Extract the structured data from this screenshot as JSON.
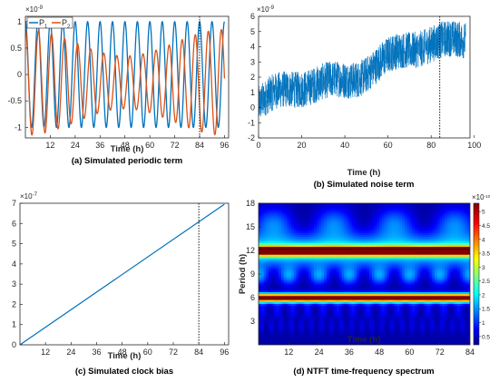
{
  "chart_data": [
    {
      "id": "a",
      "type": "line",
      "caption": "(a) Simulated periodic term",
      "xlabel": "Time (h)",
      "ylabel": "",
      "y_exponent": "×10",
      "y_exponent_power": "-9",
      "xlim": [
        0,
        98
      ],
      "ylim": [
        -1.2,
        1.1
      ],
      "xticks": [
        12,
        24,
        36,
        48,
        60,
        72,
        84,
        96
      ],
      "yticks": [
        -1,
        -0.5,
        0,
        0.5,
        1
      ],
      "legend": {
        "position": "top-left",
        "entries": [
          "P1",
          "P2"
        ],
        "symbol": "P"
      },
      "series": [
        {
          "name": "P1",
          "color": "#0072BD",
          "period_h": 6,
          "amplitude": 1.0,
          "x_range": [
            0,
            96
          ]
        },
        {
          "name": "P2",
          "color": "#D95319",
          "period_h": 6.3,
          "amplitude_range": [
            0.5,
            1.0
          ],
          "mean": -0.15,
          "x_range": [
            0,
            96
          ]
        }
      ],
      "vline_x": 84
    },
    {
      "id": "b",
      "type": "line",
      "caption": "(b) Simulated noise term",
      "xlabel": "Time (h)",
      "y_exponent": "×10",
      "y_exponent_power": "-9",
      "xlim": [
        0,
        98
      ],
      "ylim": [
        -2,
        6
      ],
      "xticks": [
        0,
        20,
        40,
        60,
        80,
        100
      ],
      "yticks": [
        -2,
        -1,
        0,
        1,
        2,
        3,
        4,
        5,
        6
      ],
      "series": [
        {
          "name": "",
          "color": "#0072BD",
          "trend_start": 0.2,
          "trend_end": 4.8,
          "noise_band": 1.2,
          "x_range": [
            0,
            96
          ]
        }
      ],
      "vline_x": 84
    },
    {
      "id": "c",
      "type": "line",
      "caption": "(c) Simulated clock bias",
      "xlabel": "Time (h)",
      "y_exponent": "×10",
      "y_exponent_power": "-7",
      "xlim": [
        0,
        98
      ],
      "ylim": [
        0,
        7
      ],
      "xticks": [
        12,
        24,
        36,
        48,
        60,
        72,
        84,
        96
      ],
      "yticks": [
        0,
        1,
        2,
        3,
        4,
        5,
        6,
        7
      ],
      "series": [
        {
          "name": "",
          "color": "#0072BD",
          "x": [
            0,
            96
          ],
          "y": [
            0,
            6.95
          ]
        }
      ],
      "vline_x": 84
    },
    {
      "id": "d",
      "type": "heatmap",
      "caption": "(d) NTFT time-frequency spectrum",
      "xlabel": "Time (h)",
      "ylabel": "Period (h)",
      "xlim": [
        0,
        84
      ],
      "ylim": [
        0,
        18
      ],
      "xticks": [
        12,
        24,
        36,
        48,
        60,
        72,
        84
      ],
      "yticks": [
        3,
        6,
        9,
        12,
        15,
        18
      ],
      "colorbar": {
        "min": 0.2,
        "max": 5.3,
        "ticks": [
          0.5,
          1,
          1.5,
          2,
          2.5,
          3,
          3.5,
          4,
          4.5,
          5
        ],
        "exponent": "×10",
        "exponent_power": "-10",
        "colormap": "jet"
      },
      "ridges": [
        {
          "period_h": 6,
          "strength": 5.2
        },
        {
          "period_h": 12,
          "strength": 5.0
        }
      ]
    }
  ]
}
